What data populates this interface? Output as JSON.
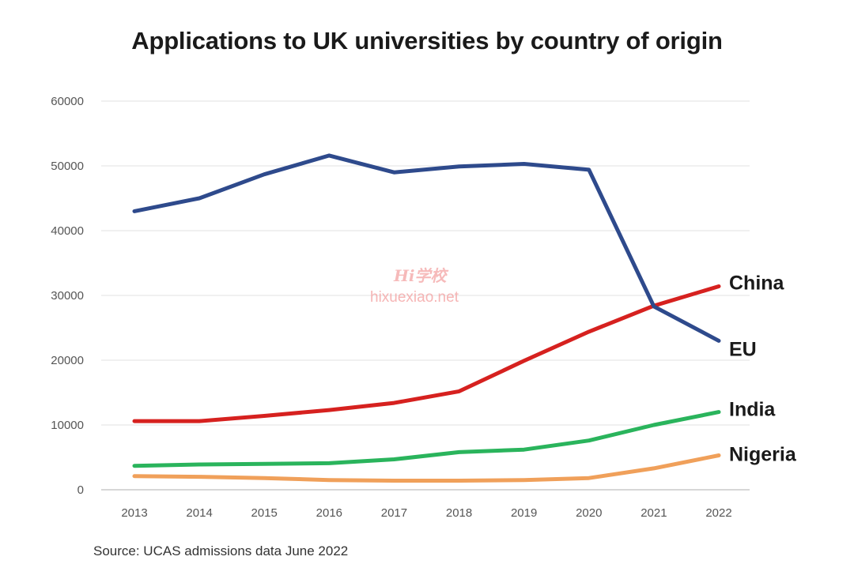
{
  "title": "Applications to UK universities by country of origin",
  "source": "Source: UCAS admissions data June 2022",
  "watermark": {
    "line1": "Hi学校",
    "line2": "hixuexiao.net"
  },
  "chart_data": {
    "type": "line",
    "title": "Applications to UK universities by country of origin",
    "x": [
      "2013",
      "2014",
      "2015",
      "2016",
      "2017",
      "2018",
      "2019",
      "2020",
      "2021",
      "2022"
    ],
    "ylim": [
      0,
      60000
    ],
    "yticks": [
      "0",
      "10000",
      "20000",
      "30000",
      "40000",
      "50000",
      "60000"
    ],
    "grid": true,
    "legend": "series labels at right end of lines",
    "series": [
      {
        "name": "EU",
        "color": "#2e4a8c",
        "values": [
          43000,
          45000,
          48700,
          51600,
          49000,
          49900,
          50300,
          49400,
          28300,
          23000
        ]
      },
      {
        "name": "China",
        "color": "#d6211f",
        "values": [
          10600,
          10600,
          11400,
          12300,
          13400,
          15200,
          19900,
          24400,
          28400,
          31400
        ]
      },
      {
        "name": "India",
        "color": "#2ab45c",
        "values": [
          3700,
          3900,
          4000,
          4100,
          4700,
          5800,
          6200,
          7600,
          10000,
          12000
        ]
      },
      {
        "name": "Nigeria",
        "color": "#f0a05a",
        "values": [
          2100,
          2000,
          1800,
          1500,
          1400,
          1400,
          1500,
          1800,
          3300,
          5300
        ]
      }
    ]
  }
}
